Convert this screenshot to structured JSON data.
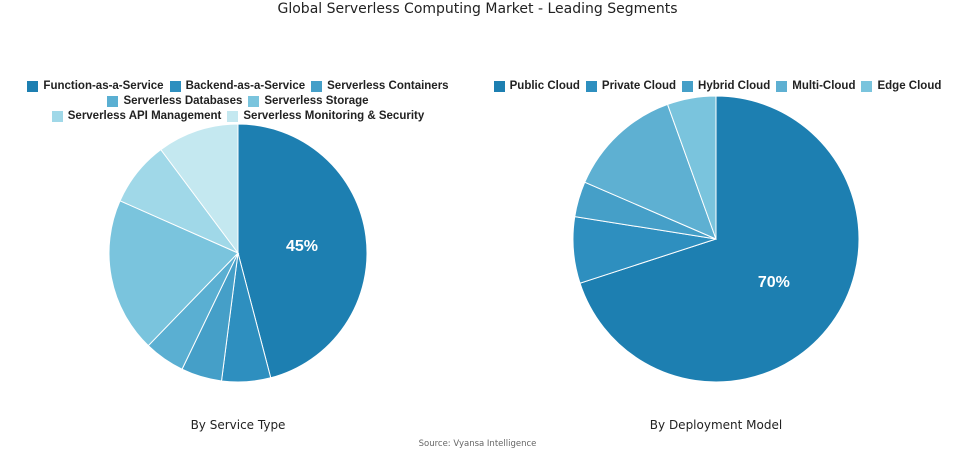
{
  "title": "Global Serverless Computing Market - Leading Segments",
  "source": "Source: Vyansa Intelligence",
  "chart_data": [
    {
      "type": "pie",
      "caption": "By Service Type",
      "labels": [
        "Function-as-a-Service",
        "Backend-as-a-Service",
        "Serverless Containers",
        "Serverless Databases",
        "Serverless Storage",
        "Serverless API Management",
        "Serverless Monitoring & Security"
      ],
      "values": [
        45,
        6,
        5,
        5,
        19,
        8,
        10
      ],
      "colors": [
        "#1d7fb1",
        "#2e8fbf",
        "#459fc8",
        "#5aafd2",
        "#7ac4dd",
        "#a0d8e8",
        "#c4e8f0"
      ],
      "data_labels": [
        "45%",
        "",
        "",
        "",
        "",
        "",
        ""
      ],
      "legend_position": "top"
    },
    {
      "type": "pie",
      "caption": "By Deployment Model",
      "labels": [
        "Public Cloud",
        "Private Cloud",
        "Hybrid Cloud",
        "Multi-Cloud",
        "Edge Cloud"
      ],
      "values": [
        70,
        7.5,
        4,
        13,
        5.5
      ],
      "colors": [
        "#1d7fb1",
        "#2e8fbf",
        "#459fc8",
        "#5eb0d2",
        "#7ac4dd"
      ],
      "data_labels": [
        "70%",
        "",
        "",
        "",
        ""
      ],
      "legend_position": "top"
    }
  ]
}
